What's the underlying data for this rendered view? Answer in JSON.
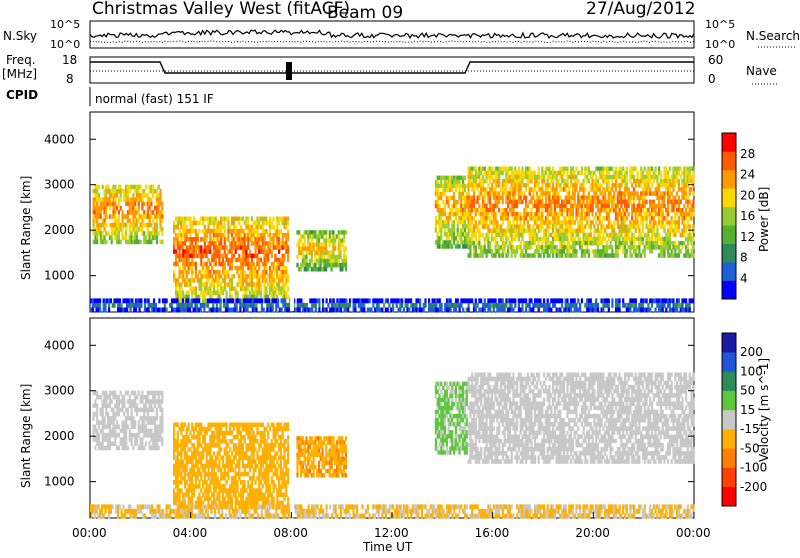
{
  "title": {
    "station": "Christmas Valley West (fitACF)",
    "beam": "Beam 09",
    "date": "27/Aug/2012"
  },
  "top_labels": {
    "nsky": "N.Sky",
    "nsky_ticks": [
      "10^5",
      "10^0"
    ],
    "nsearch_ticks": [
      "10^5",
      "10^0"
    ],
    "nsearch": "N.Search",
    "freq": "Freq.",
    "freq_unit": "[MHz]",
    "freq_ticks": [
      "18",
      "8"
    ],
    "nave_ticks": [
      "60",
      "0"
    ],
    "nave": "Nave",
    "cpid": "CPID",
    "cpid_value": "normal (fast) 151 IF"
  },
  "colors": {
    "power_scale": [
      "#0000ff",
      "#1f5fd6",
      "#2e8b57",
      "#55b030",
      "#9acd32",
      "#ffd700",
      "#ff9900",
      "#ff5a00",
      "#ff0000"
    ],
    "velocity_scale": [
      "#1a1aa6",
      "#1f55d8",
      "#2e8b57",
      "#5cc83a",
      "#c8c8c8",
      "#ffb000",
      "#ff8000",
      "#ff4000",
      "#ff0000"
    ]
  },
  "chart_data": [
    {
      "type": "heatmap",
      "title": "",
      "ylabel": "Slant Range [km]",
      "xlabel": "Time UT",
      "yticks": [
        "4000",
        "3000",
        "2000",
        "1000"
      ],
      "ylim": [
        200,
        4600
      ],
      "colorbar": {
        "label": "Power [dB]",
        "ticks": [
          "28",
          "24",
          "20",
          "16",
          "12",
          "8",
          "4"
        ],
        "range": [
          0,
          32
        ]
      },
      "echo_regions": [
        {
          "t_start": 0.1,
          "t_end": 2.9,
          "range_min": 1700,
          "range_max": 3000,
          "power": 26
        },
        {
          "t_start": 3.3,
          "t_end": 7.9,
          "range_min": 400,
          "range_max": 2300,
          "power": 28
        },
        {
          "t_start": 8.2,
          "t_end": 10.2,
          "range_min": 1100,
          "range_max": 2000,
          "power": 22
        },
        {
          "t_start": 13.7,
          "t_end": 15.0,
          "range_min": 1600,
          "range_max": 3200,
          "power": 24
        },
        {
          "t_start": 15.0,
          "t_end": 24.0,
          "range_min": 1400,
          "range_max": 3400,
          "power": 26
        },
        {
          "t_start": 0.0,
          "t_end": 24.0,
          "range_min": 200,
          "range_max": 500,
          "power": 8
        }
      ]
    },
    {
      "type": "heatmap",
      "title": "",
      "ylabel": "Slant Range [km]",
      "xlabel": "Time UT",
      "yticks": [
        "4000",
        "3000",
        "2000",
        "1000"
      ],
      "ylim": [
        200,
        4600
      ],
      "colorbar": {
        "label": "Velocity [m s^-1]",
        "ticks": [
          "200",
          "100",
          "50",
          "15",
          "-15",
          "-50",
          "-100",
          "-200"
        ],
        "range": [
          -250,
          250
        ]
      },
      "echo_regions": [
        {
          "t_start": 0.1,
          "t_end": 2.9,
          "range_min": 1700,
          "range_max": 3000,
          "velocity": 0
        },
        {
          "t_start": 3.3,
          "t_end": 7.9,
          "range_min": 400,
          "range_max": 2300,
          "velocity": -60
        },
        {
          "t_start": 8.2,
          "t_end": 10.2,
          "range_min": 1100,
          "range_max": 2000,
          "velocity": -80
        },
        {
          "t_start": 13.7,
          "t_end": 15.0,
          "range_min": 1600,
          "range_max": 3200,
          "velocity": 40
        },
        {
          "t_start": 15.0,
          "t_end": 24.0,
          "range_min": 1400,
          "range_max": 3400,
          "velocity": 0
        },
        {
          "t_start": 0.0,
          "t_end": 24.0,
          "range_min": 200,
          "range_max": 500,
          "velocity": -40
        }
      ]
    }
  ],
  "x_axis": {
    "label": "Time UT",
    "ticks": [
      "00:00",
      "04:00",
      "08:00",
      "12:00",
      "16:00",
      "20:00",
      "00:00"
    ],
    "range": [
      0,
      24
    ]
  }
}
